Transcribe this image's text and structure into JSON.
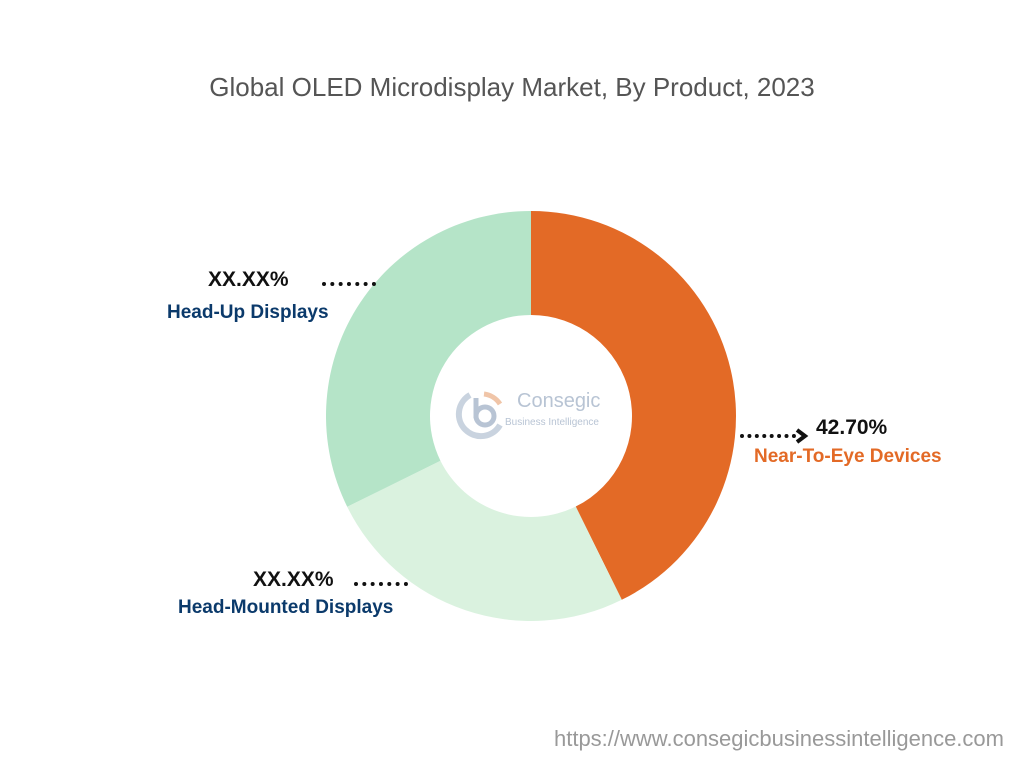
{
  "chart_data": {
    "type": "donut",
    "title": "Global OLED Microdisplay Market, By Product, 2023",
    "start": "top",
    "direction": "clockwise",
    "slices": [
      {
        "name": "Near-To-Eye Devices",
        "value": 42.7,
        "label": "42.70%",
        "color": "#E36A26",
        "label_color": "#E36A26"
      },
      {
        "name": "Head-Mounted Displays",
        "value": 25.0,
        "label": "XX.XX%",
        "color": "#DAF2DF",
        "label_color": "#0B3A6B"
      },
      {
        "name": "Head-Up Displays",
        "value": 32.3,
        "label": "XX.XX%",
        "color": "#B5E4C8",
        "label_color": "#0B3A6B"
      }
    ]
  },
  "logo": {
    "text": "Consegic",
    "sub": "Business Intelligence"
  },
  "footer": {
    "url": "https://www.consegicbusinessintelligence.com"
  }
}
